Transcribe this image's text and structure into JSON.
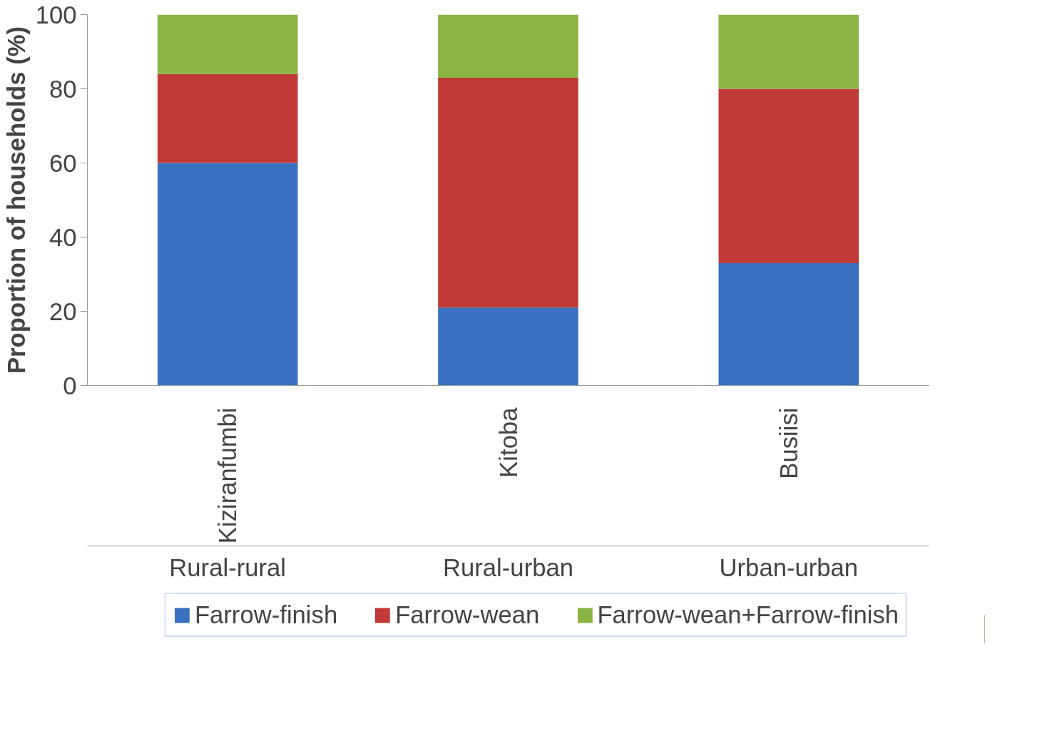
{
  "chart_data": {
    "type": "bar",
    "stacked": true,
    "ylabel": "Proportion of households (%)",
    "categories": [
      "Kiziranfumbi",
      "Kitoba",
      "Busiisi"
    ],
    "series": [
      {
        "name": "Farrow-finish",
        "color": "#3a70bf",
        "values": [
          60,
          21,
          33
        ]
      },
      {
        "name": "Farrow-wean",
        "color": "#c23a38",
        "values": [
          24,
          62,
          47
        ]
      },
      {
        "name": "Farrow-wean+Farrow-finish",
        "color": "#8ab443",
        "values": [
          16,
          17,
          20
        ]
      }
    ],
    "ylim": [
      0,
      100
    ],
    "yticks": [
      0,
      20,
      40,
      60,
      80,
      100
    ],
    "grid": false,
    "legend": "bottom",
    "annotations": [
      "Rural-rural",
      "Rural-urban",
      "Urban-urban"
    ]
  }
}
